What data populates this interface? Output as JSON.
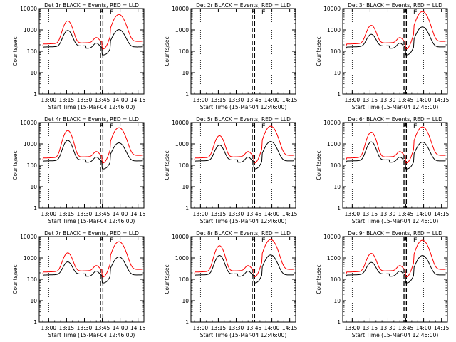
{
  "chart_data": [
    {
      "type": "line",
      "title": "Det 1r  BLACK = Events, RED = LLD",
      "ylabel": "Counts/sec",
      "xlabel": "Start Time (15-Mar-04 12:46:00)",
      "tick_labels": [
        "13:00",
        "13:15",
        "13:30",
        "13:45",
        "14:00",
        "14:15"
      ],
      "y_tick_labels": [
        "1",
        "10",
        "100",
        "1000",
        "10000"
      ],
      "ylim": [
        1,
        10000
      ],
      "scale": "log",
      "markers": [
        "S",
        "E"
      ],
      "has_data": true,
      "series": [
        {
          "name": "Events",
          "color": "#000000"
        },
        {
          "name": "LLD",
          "color": "#ff0000"
        }
      ]
    },
    {
      "type": "line",
      "title": "Det 2r  BLACK = Events, RED = LLD",
      "ylabel": "Counts/sec",
      "xlabel": "Start Time (15-Mar-04 12:46:00)",
      "tick_labels": [
        "13:00",
        "13:15",
        "13:30",
        "13:45",
        "14:00",
        "14:15"
      ],
      "y_tick_labels": [
        "1",
        "10",
        "100",
        "1000",
        "10000"
      ],
      "ylim": [
        1,
        10000
      ],
      "scale": "log",
      "markers": [
        "S",
        "E"
      ],
      "has_data": false,
      "series": []
    },
    {
      "type": "line",
      "title": "Det 3r  BLACK = Events, RED = LLD",
      "ylabel": "Counts/sec",
      "xlabel": "Start Time (15-Mar-04 12:46:00)",
      "tick_labels": [
        "13:00",
        "13:15",
        "13:30",
        "13:45",
        "14:00",
        "14:15"
      ],
      "y_tick_labels": [
        "1",
        "10",
        "100",
        "1000",
        "10000"
      ],
      "ylim": [
        1,
        10000
      ],
      "scale": "log",
      "markers": [
        "S",
        "E"
      ],
      "has_data": true,
      "series": [
        {
          "name": "Events",
          "color": "#000000"
        },
        {
          "name": "LLD",
          "color": "#ff0000"
        }
      ]
    },
    {
      "type": "line",
      "title": "Det 4r  BLACK = Events, RED = LLD",
      "ylabel": "Counts/sec",
      "xlabel": "Start Time (15-Mar-04 12:46:00)",
      "tick_labels": [
        "13:00",
        "13:15",
        "13:30",
        "13:45",
        "14:00",
        "14:15"
      ],
      "y_tick_labels": [
        "1",
        "10",
        "100",
        "1000",
        "10000"
      ],
      "ylim": [
        1,
        10000
      ],
      "scale": "log",
      "markers": [
        "S",
        "E"
      ],
      "has_data": true,
      "series": [
        {
          "name": "Events",
          "color": "#000000"
        },
        {
          "name": "LLD",
          "color": "#ff0000"
        }
      ]
    },
    {
      "type": "line",
      "title": "Det 5r  BLACK = Events, RED = LLD",
      "ylabel": "Counts/sec",
      "xlabel": "Start Time (15-Mar-04 12:46:00)",
      "tick_labels": [
        "13:00",
        "13:15",
        "13:30",
        "13:45",
        "14:00",
        "14:15"
      ],
      "y_tick_labels": [
        "1",
        "10",
        "100",
        "1000",
        "10000"
      ],
      "ylim": [
        1,
        10000
      ],
      "scale": "log",
      "markers": [
        "S",
        "E"
      ],
      "has_data": true,
      "series": [
        {
          "name": "Events",
          "color": "#000000"
        },
        {
          "name": "LLD",
          "color": "#ff0000"
        }
      ]
    },
    {
      "type": "line",
      "title": "Det 6r  BLACK = Events, RED = LLD",
      "ylabel": "Counts/sec",
      "xlabel": "Start Time (15-Mar-04 12:46:00)",
      "tick_labels": [
        "13:00",
        "13:15",
        "13:30",
        "13:45",
        "14:00",
        "14:15"
      ],
      "y_tick_labels": [
        "1",
        "10",
        "100",
        "1000",
        "10000"
      ],
      "ylim": [
        1,
        10000
      ],
      "scale": "log",
      "markers": [
        "S",
        "E"
      ],
      "has_data": true,
      "series": [
        {
          "name": "Events",
          "color": "#000000"
        },
        {
          "name": "LLD",
          "color": "#ff0000"
        }
      ]
    },
    {
      "type": "line",
      "title": "Det 7r  BLACK = Events, RED = LLD",
      "ylabel": "Counts/sec",
      "xlabel": "Start Time (15-Mar-04 12:46:00)",
      "tick_labels": [
        "13:00",
        "13:15",
        "13:30",
        "13:45",
        "14:00",
        "14:15"
      ],
      "y_tick_labels": [
        "1",
        "10",
        "100",
        "1000",
        "10000"
      ],
      "ylim": [
        1,
        10000
      ],
      "scale": "log",
      "markers": [
        "S",
        "E"
      ],
      "has_data": true,
      "series": [
        {
          "name": "Events",
          "color": "#000000"
        },
        {
          "name": "LLD",
          "color": "#ff0000"
        }
      ]
    },
    {
      "type": "line",
      "title": "Det 8r  BLACK = Events, RED = LLD",
      "ylabel": "Counts/sec",
      "xlabel": "Start Time (15-Mar-04 12:46:00)",
      "tick_labels": [
        "13:00",
        "13:15",
        "13:30",
        "13:45",
        "14:00",
        "14:15"
      ],
      "y_tick_labels": [
        "1",
        "10",
        "100",
        "1000",
        "10000"
      ],
      "ylim": [
        1,
        10000
      ],
      "scale": "log",
      "markers": [
        "S",
        "E"
      ],
      "has_data": true,
      "series": [
        {
          "name": "Events",
          "color": "#000000"
        },
        {
          "name": "LLD",
          "color": "#ff0000"
        }
      ]
    },
    {
      "type": "line",
      "title": "Det 9r  BLACK = Events, RED = LLD",
      "ylabel": "Counts/sec",
      "xlabel": "Start Time (15-Mar-04 12:46:00)",
      "tick_labels": [
        "13:00",
        "13:15",
        "13:30",
        "13:45",
        "14:00",
        "14:15"
      ],
      "y_tick_labels": [
        "1",
        "10",
        "100",
        "1000",
        "10000"
      ],
      "ylim": [
        1,
        10000
      ],
      "scale": "log",
      "markers": [
        "S",
        "E"
      ],
      "has_data": true,
      "series": [
        {
          "name": "Events",
          "color": "#000000"
        },
        {
          "name": "LLD",
          "color": "#ff0000"
        }
      ]
    }
  ]
}
